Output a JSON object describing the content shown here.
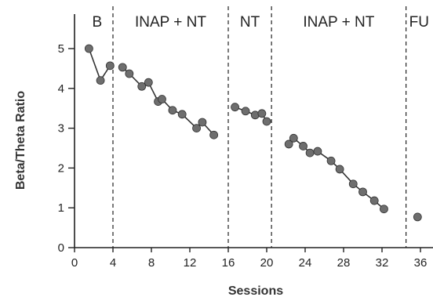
{
  "chart_data": {
    "type": "line",
    "xlabel": "Sessions",
    "ylabel": "Beta/Theta Ratio",
    "xlim": [
      0,
      37
    ],
    "ylim": [
      0,
      5.7
    ],
    "x_ticks": [
      0,
      4,
      8,
      12,
      16,
      20,
      24,
      28,
      32,
      36
    ],
    "y_ticks": [
      0,
      1,
      2,
      3,
      4,
      5
    ],
    "phases": [
      {
        "label": "B",
        "start": 0.7,
        "end": 4.0
      },
      {
        "label": "INAP + NT",
        "start": 4.0,
        "end": 16.0
      },
      {
        "label": "NT",
        "start": 16.0,
        "end": 20.5
      },
      {
        "label": "INAP + NT",
        "start": 20.5,
        "end": 34.5
      },
      {
        "label": "FU",
        "start": 34.5,
        "end": 37
      }
    ],
    "phase_boundaries": [
      4.0,
      16.0,
      20.5,
      34.5
    ],
    "segments": [
      {
        "points": [
          [
            1.5,
            5.0
          ],
          [
            2.7,
            4.2
          ],
          [
            3.7,
            4.57
          ]
        ]
      },
      {
        "points": [
          [
            5.0,
            4.53
          ],
          [
            5.7,
            4.37
          ],
          [
            7.0,
            4.05
          ],
          [
            7.7,
            4.15
          ],
          [
            8.7,
            3.67
          ],
          [
            9.1,
            3.73
          ],
          [
            10.2,
            3.45
          ],
          [
            11.2,
            3.35
          ],
          [
            12.7,
            3.0
          ],
          [
            13.3,
            3.15
          ],
          [
            14.5,
            2.83
          ]
        ]
      },
      {
        "points": [
          [
            16.7,
            3.53
          ],
          [
            17.8,
            3.43
          ],
          [
            18.8,
            3.33
          ],
          [
            19.5,
            3.37
          ],
          [
            20.0,
            3.17
          ]
        ]
      },
      {
        "points": [
          [
            22.3,
            2.6
          ],
          [
            22.8,
            2.75
          ],
          [
            23.8,
            2.55
          ],
          [
            24.5,
            2.38
          ],
          [
            25.3,
            2.42
          ],
          [
            26.7,
            2.18
          ],
          [
            27.6,
            1.97
          ],
          [
            29.0,
            1.6
          ],
          [
            30.0,
            1.4
          ],
          [
            31.2,
            1.18
          ],
          [
            32.2,
            0.97
          ]
        ]
      },
      {
        "points": [
          [
            35.7,
            0.77
          ]
        ],
        "line": false
      }
    ]
  }
}
